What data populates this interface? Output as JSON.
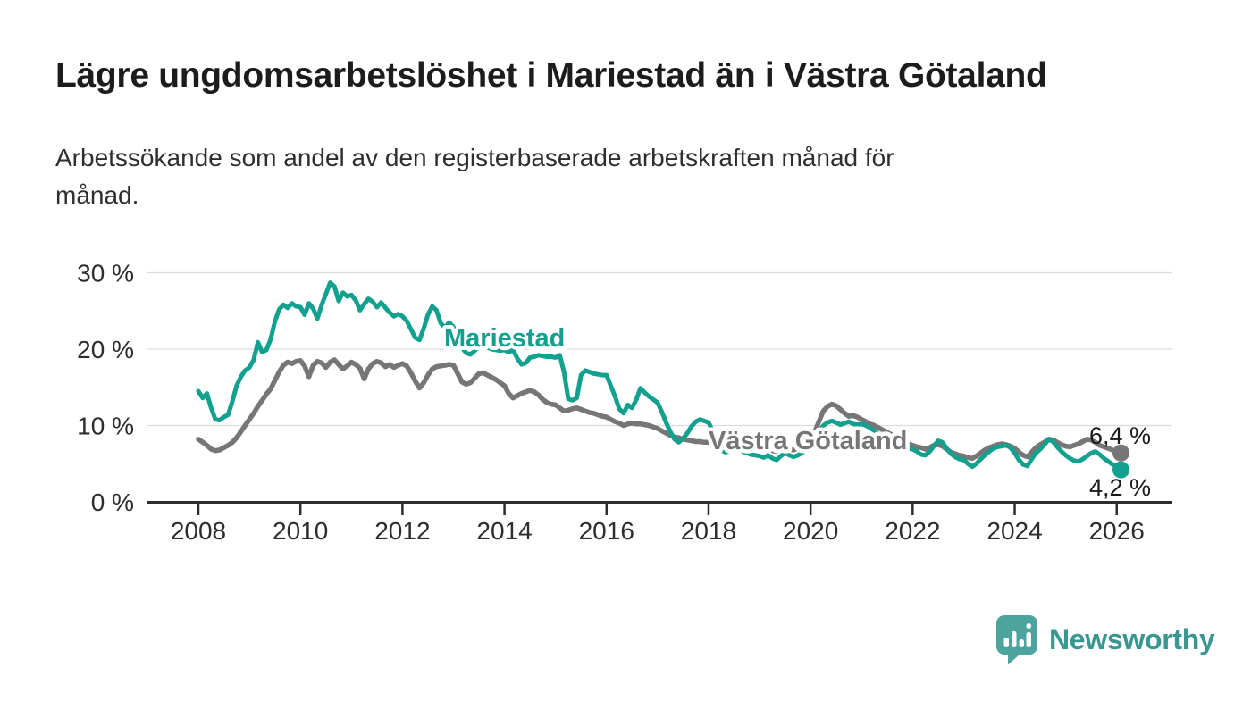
{
  "header": {
    "title": "Lägre ungdomsarbetslöshet i Mariestad än i Västra Götaland",
    "subtitle_lines": [
      "Arbetssökande som andel av den registerbaserade arbetskraften månad för",
      "månad."
    ]
  },
  "footer": {
    "brand": "Newsworthy"
  },
  "colors": {
    "mariestad": "#12a08f",
    "vastra_gotaland": "#767676",
    "grid": "#dcdcdc",
    "axis": "#2d2d2d",
    "tick_text": "#2d2d2d",
    "end_label_text": "#1a1a1a",
    "brand_teal": "#3a9691",
    "logo_bubble": "#4ba59e"
  },
  "chart_data": {
    "type": "line",
    "unit": "%",
    "x_interval": "month",
    "x_start_year": 2008,
    "x_start_month": 1,
    "x_end_year": 2026,
    "x_end_month": 2,
    "x_tick_years": [
      2008,
      2010,
      2012,
      2014,
      2016,
      2018,
      2020,
      2022,
      2024,
      2026
    ],
    "y_tick_values": [
      0,
      10,
      20,
      30
    ],
    "y_tick_labels": [
      "0 %",
      "10 %",
      "20 %",
      "30 %"
    ],
    "ylim": [
      0,
      31
    ],
    "grid": "horizontal",
    "series": [
      {
        "name": "Västra Götaland",
        "color": "#767676",
        "end_label": "6,4 %",
        "end_value": 6.4,
        "values": [
          8.2,
          7.8,
          7.4,
          6.9,
          6.7,
          6.8,
          7.1,
          7.4,
          7.8,
          8.4,
          9.2,
          10.0,
          10.8,
          11.6,
          12.5,
          13.3,
          14.1,
          14.8,
          15.9,
          17.0,
          17.9,
          18.3,
          18.1,
          18.4,
          18.5,
          17.8,
          16.4,
          17.9,
          18.4,
          18.2,
          17.6,
          18.3,
          18.6,
          18.0,
          17.4,
          17.8,
          18.3,
          18.0,
          17.5,
          16.1,
          17.4,
          18.1,
          18.4,
          18.2,
          17.7,
          18.0,
          17.6,
          17.9,
          18.1,
          17.8,
          16.9,
          15.8,
          14.9,
          15.6,
          16.6,
          17.4,
          17.7,
          17.8,
          17.9,
          18.0,
          17.9,
          16.8,
          15.7,
          15.4,
          15.6,
          16.2,
          16.8,
          16.9,
          16.6,
          16.3,
          16.0,
          15.6,
          15.2,
          14.2,
          13.6,
          13.9,
          14.2,
          14.4,
          14.6,
          14.4,
          14.0,
          13.4,
          13.0,
          12.8,
          12.7,
          12.3,
          11.9,
          12.0,
          12.2,
          12.3,
          12.1,
          11.9,
          11.7,
          11.6,
          11.4,
          11.2,
          11.1,
          10.8,
          10.5,
          10.3,
          10.0,
          10.2,
          10.3,
          10.2,
          10.2,
          10.1,
          10.0,
          9.8,
          9.6,
          9.3,
          9.0,
          8.7,
          8.5,
          8.4,
          8.2,
          8.1,
          8.0,
          7.9,
          7.9,
          7.8,
          7.8,
          7.6,
          7.5,
          7.3,
          7.2,
          7.3,
          7.5,
          7.4,
          7.2,
          7.1,
          7.0,
          7.0,
          6.9,
          6.8,
          6.9,
          6.7,
          6.6,
          6.8,
          7.0,
          6.9,
          6.8,
          7.0,
          7.3,
          7.7,
          8.4,
          9.2,
          10.6,
          11.9,
          12.5,
          12.8,
          12.6,
          12.1,
          11.6,
          11.2,
          11.3,
          11.1,
          10.8,
          10.5,
          10.2,
          10.0,
          9.7,
          9.4,
          9.1,
          8.8,
          8.5,
          8.2,
          7.9,
          7.6,
          7.4,
          7.2,
          7.1,
          6.9,
          7.1,
          7.4,
          7.5,
          7.3,
          6.9,
          6.5,
          6.3,
          6.1,
          6.0,
          5.8,
          5.7,
          6.0,
          6.4,
          6.8,
          7.1,
          7.3,
          7.5,
          7.6,
          7.5,
          7.3,
          7.0,
          6.5,
          6.1,
          5.9,
          6.5,
          7.1,
          7.5,
          7.8,
          8.2,
          8.1,
          7.8,
          7.5,
          7.3,
          7.2,
          7.4,
          7.6,
          7.9,
          8.2,
          8.1,
          7.8,
          7.4,
          7.2,
          7.0,
          6.8,
          6.6,
          6.4
        ]
      },
      {
        "name": "Mariestad",
        "color": "#12a08f",
        "end_label": "4,2 %",
        "end_value": 4.2,
        "values": [
          14.5,
          13.6,
          14.2,
          12.3,
          10.8,
          10.7,
          11.1,
          11.4,
          13.2,
          15.2,
          16.4,
          17.2,
          17.6,
          18.6,
          20.9,
          19.6,
          19.9,
          21.3,
          23.6,
          25.2,
          25.8,
          25.4,
          26.0,
          25.6,
          25.5,
          24.5,
          26.0,
          25.3,
          24.0,
          25.8,
          27.2,
          28.7,
          28.2,
          26.3,
          27.4,
          26.9,
          27.1,
          26.4,
          25.1,
          25.9,
          26.6,
          26.2,
          25.5,
          26.1,
          25.4,
          24.8,
          24.3,
          24.6,
          24.3,
          23.7,
          22.6,
          21.5,
          21.2,
          22.7,
          24.5,
          25.6,
          25.1,
          23.4,
          22.8,
          23.5,
          22.9,
          21.5,
          20.2,
          19.5,
          19.3,
          19.8,
          20.3,
          20.5,
          20.2,
          20.0,
          19.9,
          19.8,
          19.9,
          19.6,
          19.9,
          18.8,
          18.0,
          18.2,
          18.9,
          19.0,
          19.2,
          19.1,
          19.0,
          19.0,
          18.9,
          19.2,
          17.0,
          13.5,
          13.3,
          13.6,
          16.6,
          17.2,
          17.0,
          16.8,
          16.7,
          16.6,
          16.6,
          15.2,
          13.8,
          12.2,
          11.6,
          12.7,
          12.3,
          13.4,
          14.9,
          14.3,
          13.8,
          13.4,
          13.0,
          11.8,
          10.4,
          9.2,
          8.2,
          7.8,
          8.3,
          9.0,
          9.9,
          10.5,
          10.8,
          10.6,
          10.4,
          9.2,
          7.8,
          6.8,
          6.5,
          6.7,
          7.1,
          6.9,
          6.6,
          6.4,
          6.2,
          6.1,
          6.0,
          5.8,
          6.1,
          5.7,
          5.5,
          6.0,
          6.4,
          6.1,
          5.9,
          6.1,
          6.4,
          6.9,
          7.6,
          8.3,
          9.3,
          10.0,
          10.4,
          10.6,
          10.4,
          10.1,
          10.3,
          10.5,
          10.2,
          10.1,
          10.2,
          10.0,
          9.7,
          9.3,
          8.9,
          8.5,
          8.2,
          7.9,
          7.6,
          7.4,
          7.2,
          7.0,
          6.9,
          6.6,
          6.2,
          6.1,
          6.6,
          7.3,
          8.0,
          7.8,
          7.0,
          6.3,
          5.9,
          5.6,
          5.5,
          5.0,
          4.6,
          5.0,
          5.6,
          6.1,
          6.6,
          7.0,
          7.2,
          7.3,
          7.4,
          7.1,
          6.4,
          5.5,
          4.9,
          4.7,
          5.6,
          6.4,
          6.9,
          7.5,
          8.2,
          7.9,
          7.2,
          6.6,
          6.1,
          5.7,
          5.4,
          5.3,
          5.6,
          6.0,
          6.4,
          6.6,
          6.2,
          5.7,
          5.3,
          4.9,
          4.6,
          4.2
        ]
      }
    ]
  }
}
